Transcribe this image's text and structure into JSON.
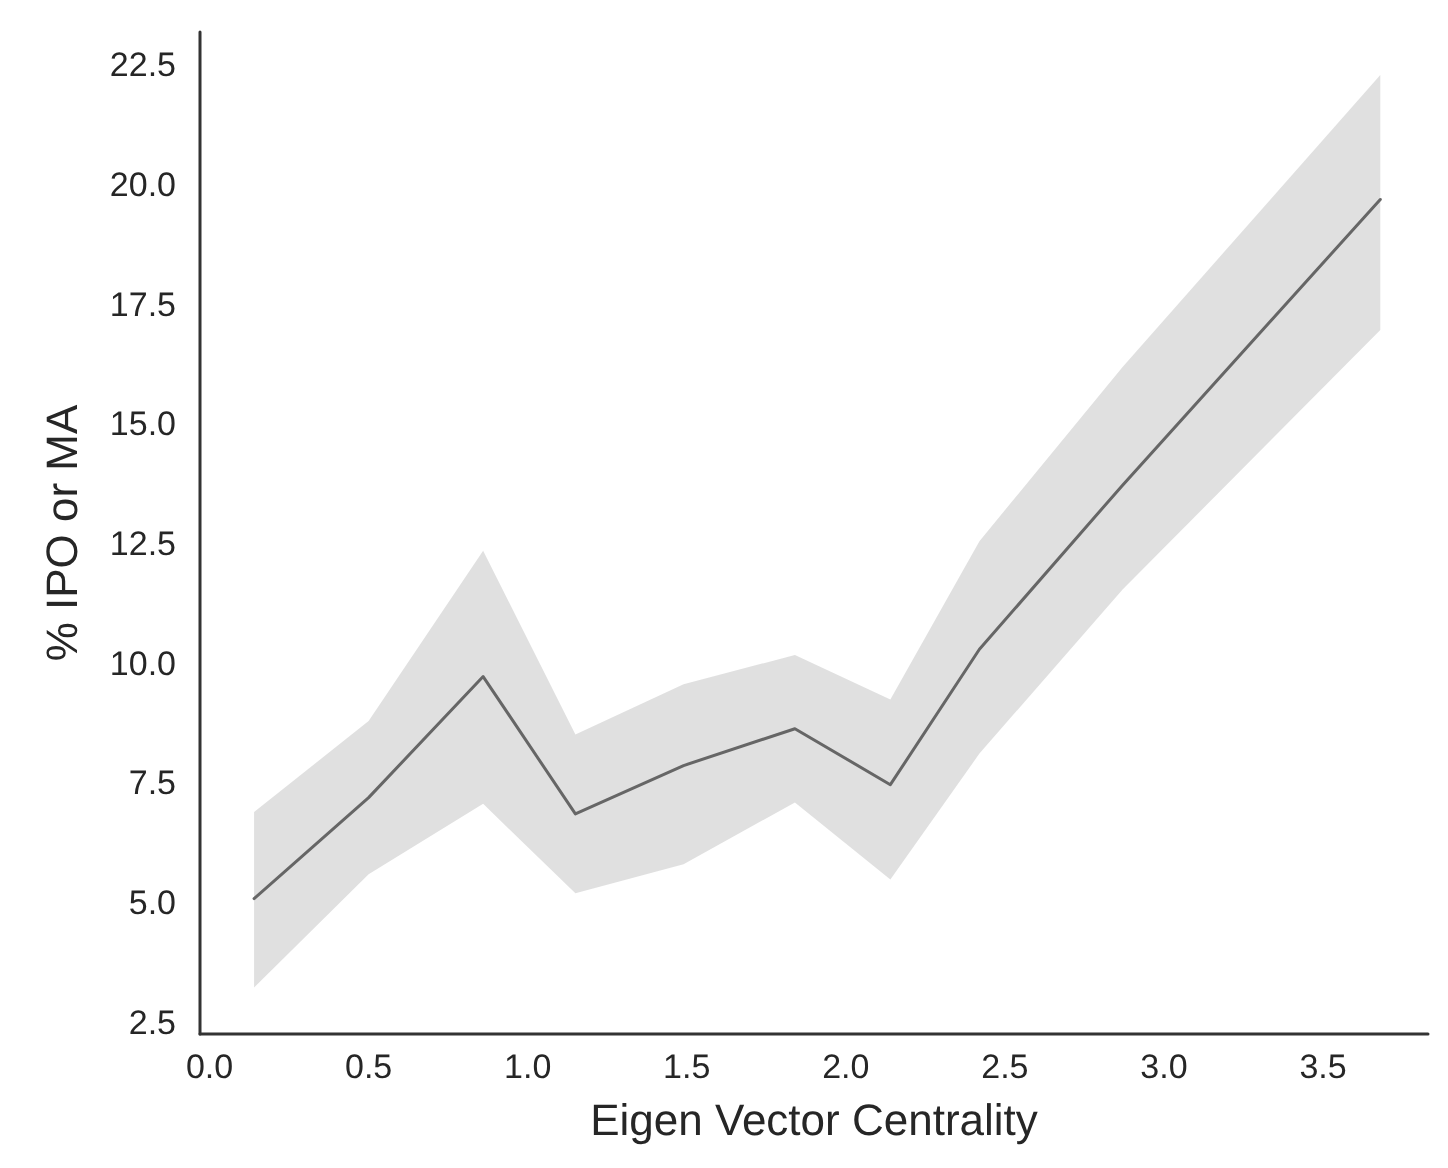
{
  "chart_data": {
    "type": "line",
    "xlabel": "Eigen Vector Centrality",
    "ylabel": "% IPO or MA",
    "x": [
      0.14,
      0.5,
      0.86,
      1.15,
      1.49,
      1.84,
      2.14,
      2.42,
      2.87,
      3.68
    ],
    "series": [
      {
        "color": "#666666",
        "values": [
          5.09,
          7.2,
          9.73,
          6.86,
          7.87,
          8.64,
          7.47,
          10.3,
          13.73,
          19.7
        ],
        "lower": [
          3.23,
          5.6,
          7.07,
          5.2,
          5.81,
          7.1,
          5.49,
          8.12,
          11.55,
          16.97
        ],
        "upper": [
          6.9,
          8.8,
          12.36,
          8.52,
          9.57,
          10.18,
          9.25,
          12.56,
          16.2,
          22.3
        ]
      }
    ],
    "xlim": [
      -0.03,
      3.83
    ],
    "ylim": [
      2.26,
      23.2
    ],
    "xticks": [
      {
        "value": 0,
        "label": "0.0"
      },
      0.5,
      {
        "value": 1,
        "label": "1.0"
      },
      1.5,
      {
        "value": 2,
        "label": "2.0"
      },
      2.5,
      {
        "value": 3,
        "label": "3.0"
      },
      3.5
    ],
    "yticks": [
      2.5,
      {
        "value": 5,
        "label": "5.0"
      },
      7.5,
      {
        "value": 10,
        "label": "10.0"
      },
      12.5,
      {
        "value": 15,
        "label": "15.0"
      },
      17.5,
      {
        "value": 20,
        "label": "20.0"
      },
      22.5
    ],
    "grid": false,
    "marker": "none",
    "line_style": "solid"
  }
}
